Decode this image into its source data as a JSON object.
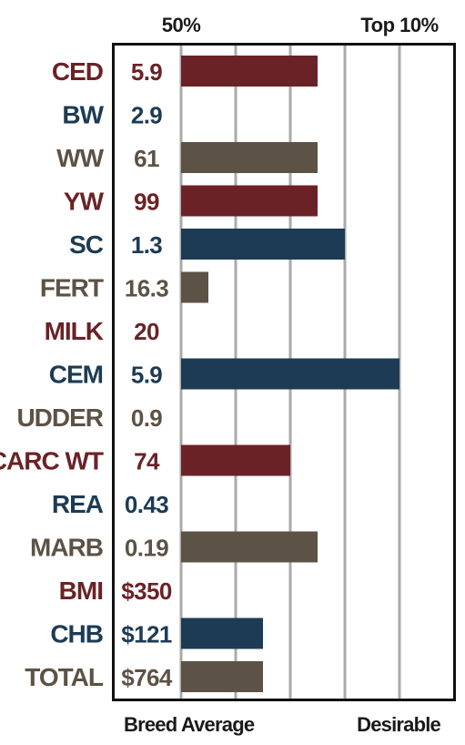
{
  "chart_data": {
    "type": "bar",
    "orientation": "horizontal",
    "top_labels": [
      "50%",
      "Top 10%"
    ],
    "bottom_labels": [
      "Breed Average",
      "Desirable"
    ],
    "grid": true,
    "scale": {
      "bar_min": 0,
      "bar_max": 5,
      "gridlines": [
        1,
        2,
        3,
        4
      ],
      "top_label_positions": [
        0,
        4
      ]
    },
    "colors": {
      "red": "#6b2226",
      "blue": "#1d3b54",
      "gray": "#5c5245",
      "grid": "#aaaaaa",
      "frame": "#111111"
    },
    "rows": [
      {
        "label": "CED",
        "value_text": "5.9",
        "bar": 2.5,
        "color": "red"
      },
      {
        "label": "BW",
        "value_text": "2.9",
        "bar": 0,
        "color": "blue"
      },
      {
        "label": "WW",
        "value_text": "61",
        "bar": 2.5,
        "color": "gray"
      },
      {
        "label": "YW",
        "value_text": "99",
        "bar": 2.5,
        "color": "red"
      },
      {
        "label": "SC",
        "value_text": "1.3",
        "bar": 3.0,
        "color": "blue"
      },
      {
        "label": "FERT",
        "value_text": "16.3",
        "bar": 0.5,
        "color": "gray"
      },
      {
        "label": "MILK",
        "value_text": "20",
        "bar": 0,
        "color": "red"
      },
      {
        "label": "CEM",
        "value_text": "5.9",
        "bar": 4.0,
        "color": "blue"
      },
      {
        "label": "UDDER",
        "value_text": "0.9",
        "bar": 0,
        "color": "gray"
      },
      {
        "label": "CARC WT",
        "value_text": "74",
        "bar": 2.0,
        "color": "red"
      },
      {
        "label": "REA",
        "value_text": "0.43",
        "bar": 0,
        "color": "blue"
      },
      {
        "label": "MARB",
        "value_text": "0.19",
        "bar": 2.5,
        "color": "gray"
      },
      {
        "label": "BMI",
        "value_text": "$350",
        "bar": 0,
        "color": "red"
      },
      {
        "label": "CHB",
        "value_text": "$121",
        "bar": 1.5,
        "color": "blue"
      },
      {
        "label": "TOTAL",
        "value_text": "$764",
        "bar": 1.5,
        "color": "gray"
      }
    ]
  }
}
